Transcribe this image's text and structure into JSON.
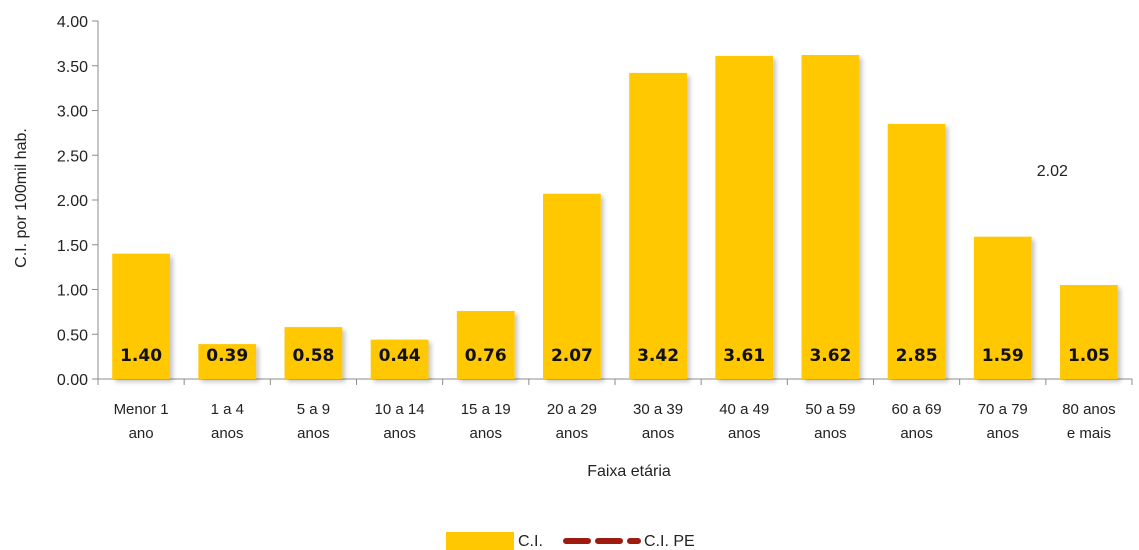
{
  "chart_data": {
    "type": "bar",
    "title": "",
    "xlabel": "Faixa etária",
    "ylabel": "C.I. por 100mil hab.",
    "ylim": [
      0,
      4
    ],
    "yticks": [
      "0.00",
      "0.50",
      "1.00",
      "1.50",
      "2.00",
      "2.50",
      "3.00",
      "3.50",
      "4.00"
    ],
    "categories": [
      [
        "Menor 1",
        "ano"
      ],
      [
        "1 a 4",
        "anos"
      ],
      [
        "5 a 9",
        "anos"
      ],
      [
        "10 a 14",
        "anos"
      ],
      [
        "15 a 19",
        "anos"
      ],
      [
        "20 a 29",
        "anos"
      ],
      [
        "30 a 39",
        "anos"
      ],
      [
        "40 a 49",
        "anos"
      ],
      [
        "50 a 59",
        "anos"
      ],
      [
        "60 a 69",
        "anos"
      ],
      [
        "70 a 79",
        "anos"
      ],
      [
        "80 anos",
        "e mais"
      ]
    ],
    "series": [
      {
        "name": "C.I.",
        "type": "bar",
        "color": "#FFC800",
        "values": [
          1.4,
          0.39,
          0.58,
          0.44,
          0.76,
          2.07,
          3.42,
          3.61,
          3.62,
          2.85,
          1.59,
          1.05
        ],
        "labels": [
          "1.40",
          "0.39",
          "0.58",
          "0.44",
          "0.76",
          "2.07",
          "3.42",
          "3.61",
          "3.62",
          "2.85",
          "1.59",
          "1.05"
        ]
      },
      {
        "name": "C.I. PE",
        "type": "line",
        "style": "dashed",
        "color": "#9E1B10",
        "value": 2.02,
        "label": "2.02"
      }
    ],
    "legend_position": "bottom",
    "grid": false
  }
}
